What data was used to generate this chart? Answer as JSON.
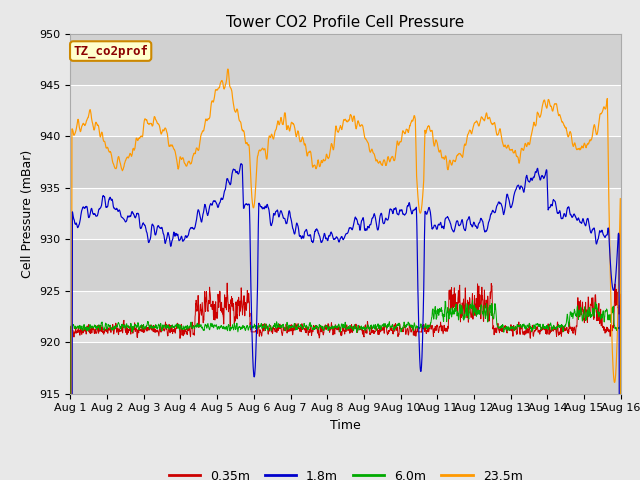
{
  "title": "Tower CO2 Profile Cell Pressure",
  "xlabel": "Time",
  "ylabel": "Cell Pressure (mBar)",
  "ylim": [
    915,
    950
  ],
  "xlim": [
    0,
    15
  ],
  "xtick_labels": [
    "Aug 1",
    "Aug 2",
    "Aug 3",
    "Aug 4",
    "Aug 5",
    "Aug 6",
    "Aug 7",
    "Aug 8",
    "Aug 9",
    "Aug 10",
    "Aug 11",
    "Aug 12",
    "Aug 13",
    "Aug 14",
    "Aug 15",
    "Aug 16"
  ],
  "legend_label": "TZ_co2prof",
  "series_labels": [
    "0.35m",
    "1.8m",
    "6.0m",
    "23.5m"
  ],
  "series_colors": [
    "#cc0000",
    "#0000cc",
    "#00aa00",
    "#ff9900"
  ],
  "bg_color": "#e8e8e8",
  "plot_bg_color": "#e0e0e0",
  "band_color": "#cbcbcb",
  "title_fontsize": 11,
  "axis_label_fontsize": 9,
  "tick_fontsize": 8
}
